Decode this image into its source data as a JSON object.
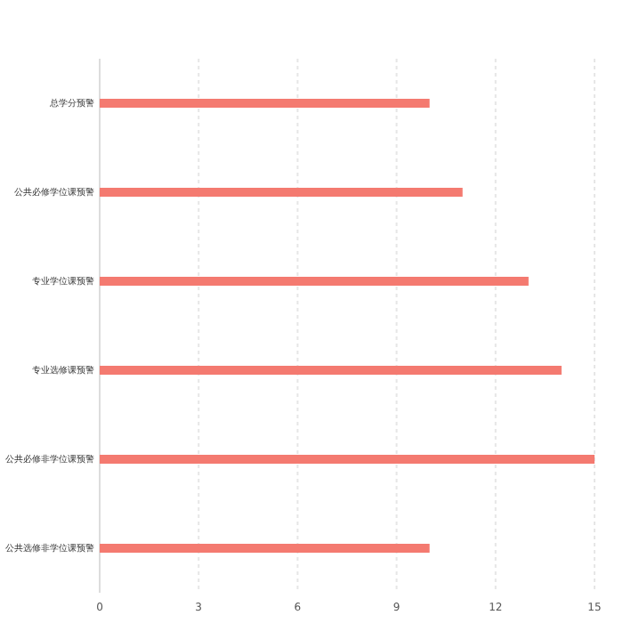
{
  "chart_data": {
    "type": "bar",
    "orientation": "horizontal",
    "categories": [
      "总学分预警",
      "公共必修学位课预警",
      "专业学位课预警",
      "专业选修课预警",
      "公共必修非学位课预警",
      "公共选修非学位课预警"
    ],
    "values": [
      10,
      11,
      13,
      14,
      15,
      10
    ],
    "color": "#f47a70",
    "xlim": [
      0,
      15
    ],
    "xticks": [
      0,
      3,
      6,
      9,
      12,
      15
    ],
    "grid": "x"
  }
}
